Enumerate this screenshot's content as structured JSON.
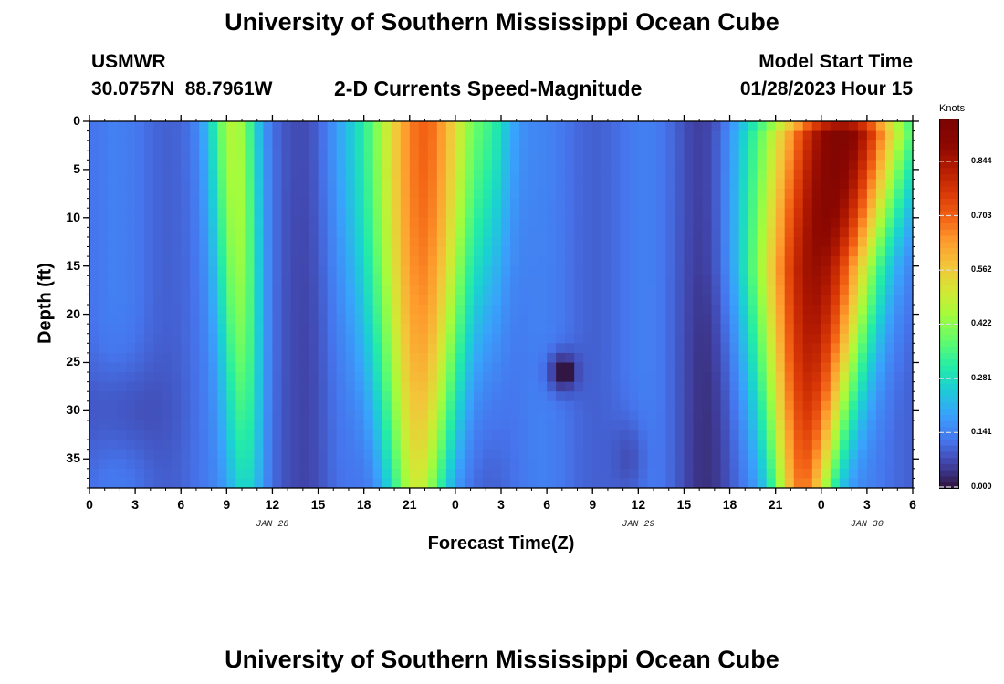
{
  "page": {
    "title": "University of Southern Mississippi Ocean Cube",
    "station_name": "USMWR",
    "coordinates": "30.0757N  88.7961W",
    "subtitle": "2-D Currents Speed-Magnitude",
    "model_label": "Model Start Time",
    "model_start": "01/28/2023 Hour 15",
    "footer_title": "University of Southern Mississippi Ocean Cube"
  },
  "chart_data": {
    "type": "heatmap",
    "ylabel": "Depth (ft)",
    "xlabel": "Forecast Time(Z)",
    "y_range": [
      0,
      38
    ],
    "y_inverted": true,
    "y_ticks": [
      "0",
      "5",
      "10",
      "15",
      "20",
      "25",
      "30",
      "35"
    ],
    "y_tick_values": [
      0,
      5,
      10,
      15,
      20,
      25,
      30,
      35
    ],
    "x_range_hours": [
      0,
      54
    ],
    "x_tick_labels": [
      "0",
      "3",
      "6",
      "9",
      "12",
      "15",
      "18",
      "21",
      "0",
      "3",
      "6",
      "9",
      "12",
      "15",
      "18",
      "21",
      "0",
      "3",
      "6"
    ],
    "x_tick_hours": [
      0,
      3,
      6,
      9,
      12,
      15,
      18,
      21,
      24,
      27,
      30,
      33,
      36,
      39,
      42,
      45,
      48,
      51,
      54
    ],
    "date_labels": [
      {
        "text": "JAN 28",
        "hour": 12
      },
      {
        "text": "JAN 29",
        "hour": 36
      },
      {
        "text": "JAN 30",
        "hour": 51
      }
    ],
    "colorbar": {
      "unit": "Knots",
      "ticks": [
        "0.844",
        "0.703",
        "0.562",
        "0.422",
        "0.281",
        "0.141",
        "0.000"
      ],
      "tick_values": [
        0.844,
        0.703,
        0.562,
        0.422,
        0.281,
        0.141,
        0.0
      ],
      "min": 0.0,
      "max": 0.95
    },
    "features": [
      {
        "name": "flood/ebb peak",
        "center_hour": 9.5,
        "depth_range": [
          0,
          32
        ],
        "max_speed_knots": 0.42
      },
      {
        "name": "flood/ebb peak",
        "center_hour": 21.5,
        "depth_range": [
          0,
          38
        ],
        "max_speed_knots": 0.65
      },
      {
        "name": "flood/ebb peak",
        "center_hour": 47.5,
        "depth_range": [
          0,
          38
        ],
        "max_speed_knots": 0.92
      },
      {
        "name": "slack minimum",
        "hour": 31,
        "depth": 26,
        "speed_knots": 0.0
      }
    ]
  }
}
